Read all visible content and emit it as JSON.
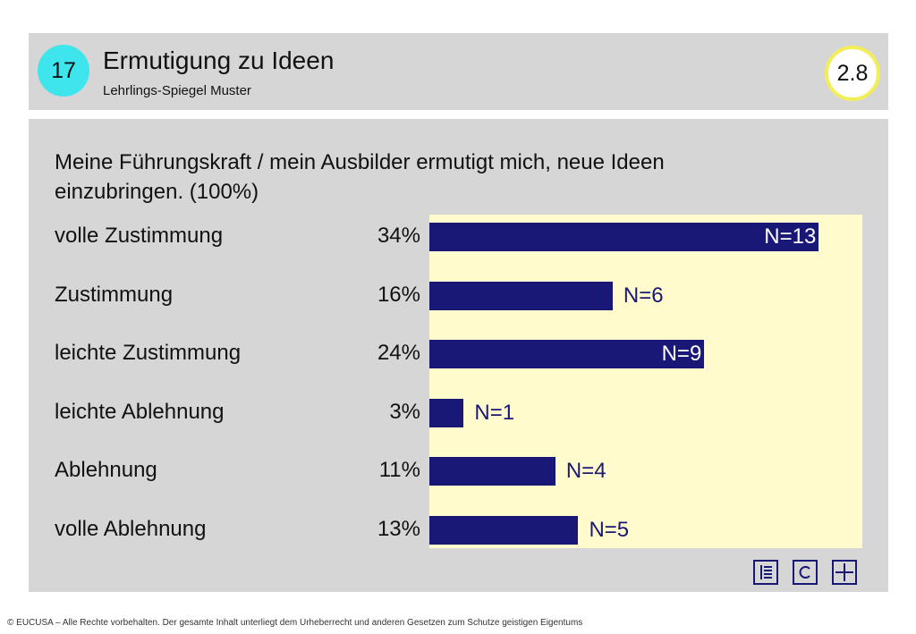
{
  "header": {
    "slide_number": "17",
    "title": "Ermutigung zu Ideen",
    "subtitle": "Lehrlings-Spiegel Muster",
    "score": "2.8"
  },
  "colors": {
    "bar": "#1a1876",
    "plot_background": "#fffbcc",
    "slide_number_circle": "#3fe5ec",
    "score_ring": "#f2ee58",
    "panel": "#d6d6d6"
  },
  "chart_data": {
    "type": "bar",
    "orientation": "horizontal",
    "title": "Meine Führungskraft / mein Ausbilder ermutigt mich, neue Ideen einzubringen. (100%)",
    "categories": [
      "volle Zustimmung",
      "Zustimmung",
      "leichte Zustimmung",
      "leichte Ablehnung",
      "Ablehnung",
      "volle Ablehnung"
    ],
    "percent_labels": [
      "34%",
      "16%",
      "24%",
      "3%",
      "11%",
      "13%"
    ],
    "values": [
      34,
      16,
      24,
      3,
      11,
      13
    ],
    "n_labels": [
      "N=13",
      "N=6",
      "N=9",
      "N=1",
      "N=4",
      "N=5"
    ],
    "xlim": [
      0,
      37.8
    ]
  },
  "icons": [
    "grid-list-icon",
    "c-box-icon",
    "quad-grid-icon"
  ],
  "footer": "© EUCUSA – Alle Rechte vorbehalten. Der gesamte Inhalt unterliegt dem Urheberrecht und anderen Gesetzen zum Schutze geistigen Eigentums"
}
